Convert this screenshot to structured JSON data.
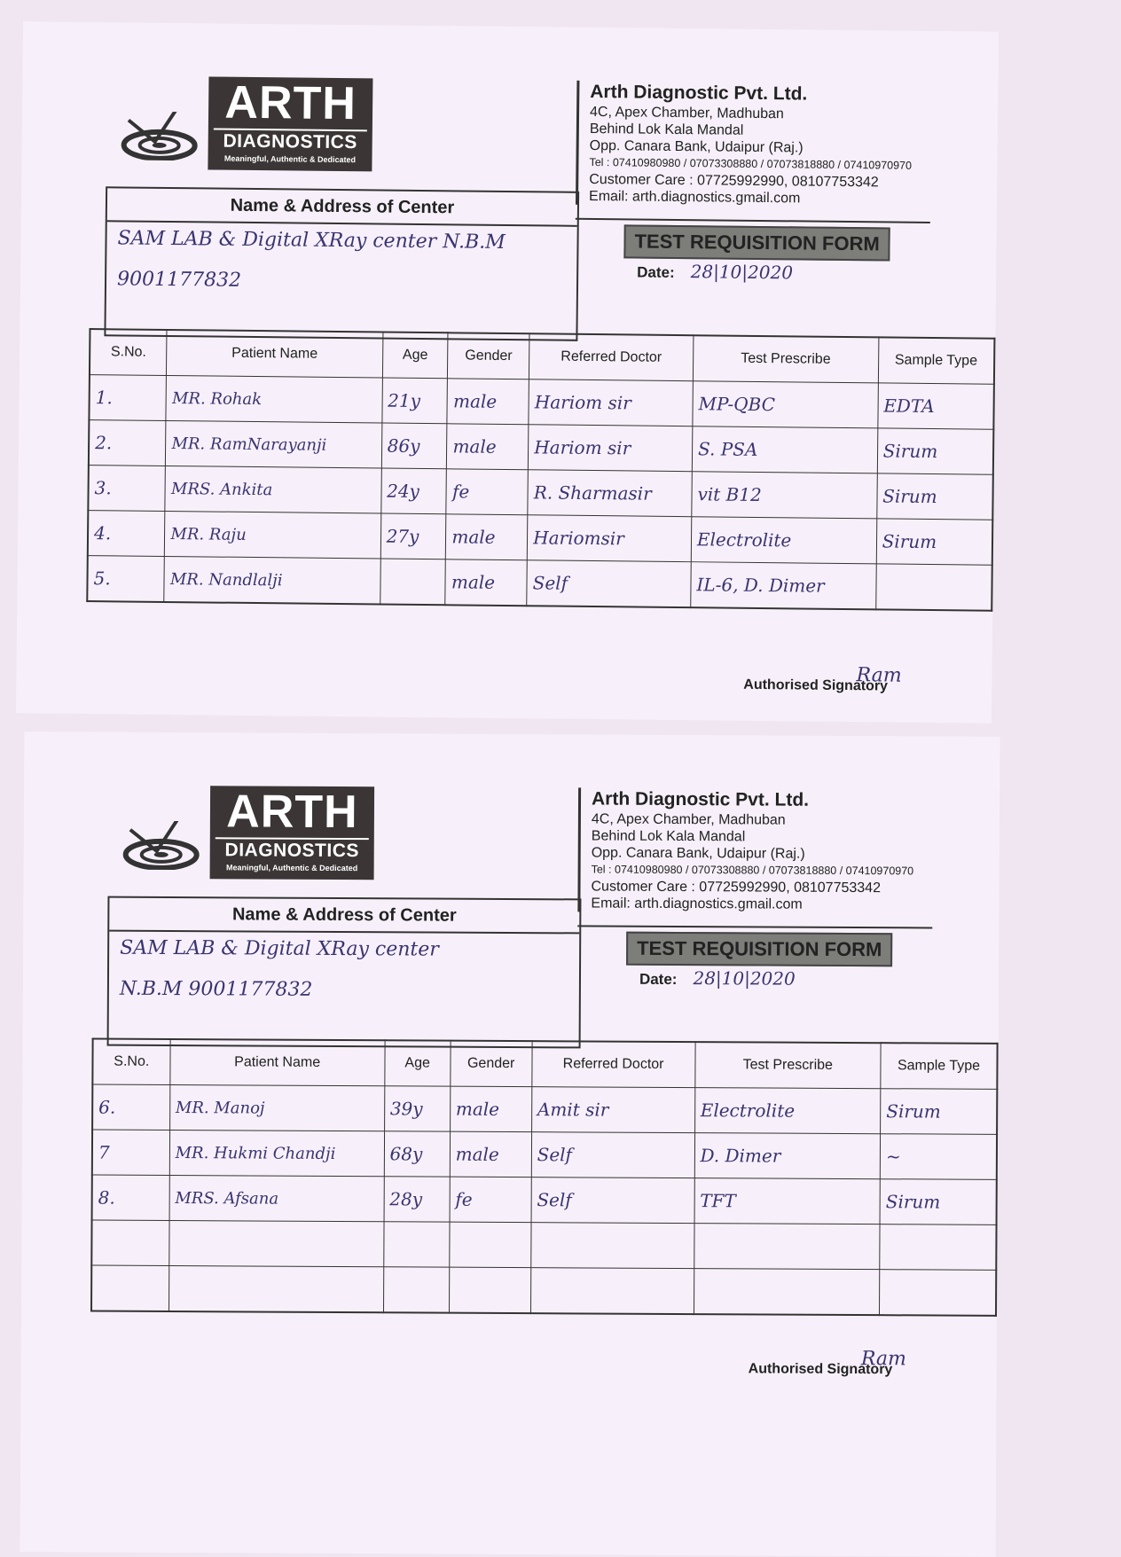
{
  "forms": [
    {
      "logo": {
        "name": "ARTH",
        "sub": "DIAGNOSTICS",
        "tagline": "Meaningful, Authentic & Dedicated"
      },
      "company": {
        "name": "Arth Diagnostic Pvt. Ltd.",
        "address1": "4C, Apex Chamber, Madhuban",
        "address2": "Behind Lok Kala Mandal",
        "address3": "Opp. Canara Bank, Udaipur (Raj.)",
        "tel": "Tel : 07410980980 / 07073308880 / 07073818880 / 07410970970",
        "care": "Customer Care : 07725992990, 08107753342",
        "email": "Email: arth.diagnostics.gmail.com"
      },
      "center": {
        "title": "Name & Address of Center",
        "line1": "SAM LAB & Digital XRay center N.B.M",
        "line2": "9001177832"
      },
      "form_title": "TEST REQUISITION FORM",
      "date_label": "Date:",
      "date_value": "28|10|2020",
      "columns": [
        "S.No.",
        "Patient Name",
        "Age",
        "Gender",
        "Referred Doctor",
        "Test Prescribe",
        "Sample Type"
      ],
      "rows": [
        [
          "1.",
          "MR. Rohak",
          "21y",
          "male",
          "Hariom sir",
          "MP-QBC",
          "EDTA"
        ],
        [
          "2.",
          "MR. RamNarayanji",
          "86y",
          "male",
          "Hariom sir",
          "S. PSA",
          "Sirum"
        ],
        [
          "3.",
          "MRS. Ankita",
          "24y",
          "fe",
          "R. Sharmasir",
          "vit B12",
          "Sirum"
        ],
        [
          "4.",
          "MR. Raju",
          "27y",
          "male",
          "Hariomsir",
          "Electrolite",
          "Sirum"
        ],
        [
          "5.",
          "MR. Nandlalji",
          "",
          "male",
          "Self",
          "IL-6, D. Dimer",
          ""
        ]
      ],
      "signatory": "Authorised Signatory",
      "signature": "Ram"
    },
    {
      "logo": {
        "name": "ARTH",
        "sub": "DIAGNOSTICS",
        "tagline": "Meaningful, Authentic & Dedicated"
      },
      "company": {
        "name": "Arth Diagnostic Pvt. Ltd.",
        "address1": "4C, Apex Chamber, Madhuban",
        "address2": "Behind Lok Kala Mandal",
        "address3": "Opp. Canara Bank, Udaipur (Raj.)",
        "tel": "Tel : 07410980980 / 07073308880 / 07073818880 / 07410970970",
        "care": "Customer Care : 07725992990, 08107753342",
        "email": "Email: arth.diagnostics.gmail.com"
      },
      "center": {
        "title": "Name & Address of Center",
        "line1": "SAM LAB & Digital XRay center",
        "line2": "N.B.M   9001177832"
      },
      "form_title": "TEST REQUISITION FORM",
      "date_label": "Date:",
      "date_value": "28|10|2020",
      "columns": [
        "S.No.",
        "Patient Name",
        "Age",
        "Gender",
        "Referred Doctor",
        "Test Prescribe",
        "Sample Type"
      ],
      "rows": [
        [
          "6.",
          "MR. Manoj",
          "39y",
          "male",
          "Amit sir",
          "Electrolite",
          "Sirum"
        ],
        [
          "7",
          "MR. Hukmi Chandji",
          "68y",
          "male",
          "Self",
          "D. Dimer",
          "~"
        ],
        [
          "8.",
          "MRS. Afsana",
          "28y",
          "fe",
          "Self",
          "TFT",
          "Sirum"
        ],
        [
          "",
          "",
          "",
          "",
          "",
          "",
          ""
        ],
        [
          "",
          "",
          "",
          "",
          "",
          "",
          ""
        ]
      ],
      "signatory": "Authorised Signatory",
      "signature": "Ram"
    }
  ]
}
